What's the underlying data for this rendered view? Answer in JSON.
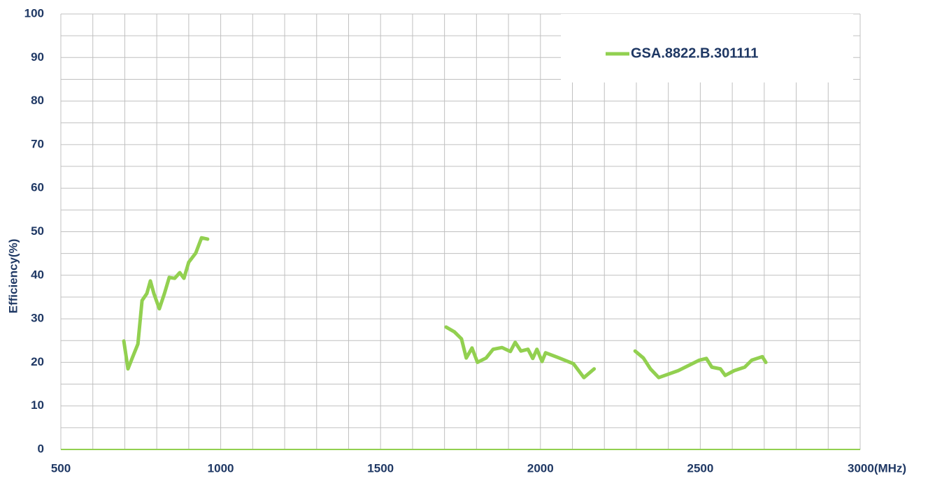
{
  "chart_data": {
    "type": "line",
    "ylabel": "Efficiency(%)",
    "x": [
      697,
      710,
      725,
      741,
      754,
      769,
      780,
      791,
      808,
      824,
      839,
      856,
      872,
      885,
      900,
      922,
      940,
      959,
      null,
      1705,
      1731,
      1753,
      1768,
      1786,
      1803,
      1830,
      1852,
      1880,
      1906,
      1921,
      1939,
      1961,
      1976,
      1989,
      2005,
      2016,
      2059,
      2103,
      2136,
      2168,
      null,
      2296,
      2322,
      2344,
      2370,
      2431,
      2497,
      2519,
      2536,
      2563,
      2578,
      2606,
      2639,
      2661,
      2694,
      2705
    ],
    "series": [
      {
        "name": "GSA.8822.B.301111",
        "color": "#92d050",
        "values": [
          24.9,
          18.5,
          21.3,
          24.2,
          34.2,
          35.8,
          38.7,
          35.8,
          32.3,
          35.8,
          39.5,
          39.3,
          40.6,
          39.3,
          43,
          45.1,
          48.6,
          48.3,
          null,
          28.1,
          27,
          25.4,
          21,
          23.3,
          20,
          21,
          23,
          23.4,
          22.5,
          24.6,
          22.6,
          23,
          20.9,
          23,
          20.2,
          22.2,
          21,
          19.7,
          16.5,
          18.5,
          null,
          22.6,
          21,
          18.5,
          16.5,
          18.1,
          20.5,
          20.9,
          18.9,
          18.5,
          17,
          18.1,
          18.9,
          20.5,
          21.3,
          20
        ]
      }
    ],
    "xlim": [
      500,
      3000
    ],
    "xticks": [
      500,
      1000,
      1500,
      2000,
      2500,
      {
        "value": 3000,
        "label": "3000(MHz)"
      }
    ],
    "xminor_ticks": [
      600,
      700,
      800,
      900,
      1100,
      1200,
      1300,
      1400,
      1600,
      1700,
      1800,
      1900,
      2100,
      2200,
      2300,
      2400,
      2600,
      2700,
      2800,
      2900
    ],
    "ylim": [
      0,
      100
    ],
    "yticks": [
      0,
      10,
      20,
      30,
      40,
      50,
      60,
      70,
      80,
      90,
      100
    ],
    "yminor_ticks": [
      5,
      15,
      25,
      35,
      45,
      55,
      65,
      75,
      85,
      95
    ],
    "grid": true,
    "legend": "upper right"
  }
}
